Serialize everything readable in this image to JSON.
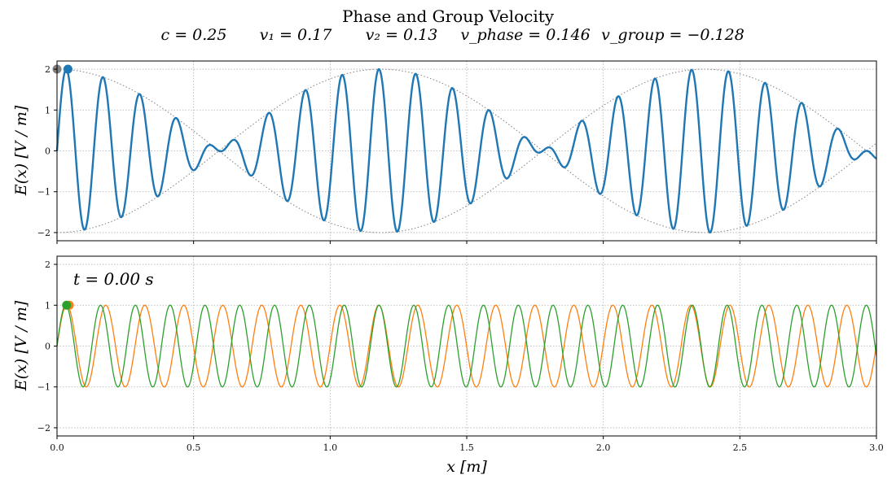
{
  "figure": {
    "title": "Phase and Group Velocity",
    "params": [
      {
        "label": "c = 0.25"
      },
      {
        "label": "v₁ = 0.17"
      },
      {
        "label": "v₂ = 0.13"
      },
      {
        "label": "v_phase = 0.146"
      },
      {
        "label": "v_group = −0.128"
      }
    ]
  },
  "chart_data": [
    {
      "type": "line",
      "panel": "top",
      "ylabel": "E(x)  [V / m]",
      "xlim": [
        0,
        3
      ],
      "ylim": [
        -2.2,
        2.2
      ],
      "yticks": [
        -2,
        -1,
        0,
        1,
        2
      ],
      "ytick_labels": [
        "−2",
        "−1",
        "0",
        "1",
        "2"
      ],
      "xticks": [
        0,
        0.5,
        1,
        1.5,
        2,
        2.5,
        3
      ],
      "grid": true,
      "model": {
        "k1": 44.0,
        "k2": 49.3
      },
      "series": [
        {
          "role": "sum",
          "color": "#1f77b4",
          "formula": "sin(k1 x) + sin(k2 x)"
        },
        {
          "role": "envelope-upper",
          "color": "#808080",
          "style": "dotted",
          "formula": "2 cos((k2-k1) x / 2)"
        },
        {
          "role": "envelope-lower",
          "color": "#808080",
          "style": "dotted",
          "formula": "-2 cos((k2-k1) x / 2)"
        }
      ],
      "markers": [
        {
          "x": 0.0,
          "y": 2.0,
          "color": "#808080"
        },
        {
          "x": 0.04,
          "y": 2.0,
          "color": "#1f77b4"
        }
      ]
    },
    {
      "type": "line",
      "panel": "bottom",
      "annotation": "t = 0.00 s",
      "xlabel": "x [m]",
      "ylabel": "E(x)  [V / m]",
      "xlim": [
        0,
        3
      ],
      "ylim": [
        -2.2,
        2.2
      ],
      "yticks": [
        -2,
        -1,
        0,
        1,
        2
      ],
      "ytick_labels": [
        "−2",
        "−1",
        "0",
        "1",
        "2"
      ],
      "xticks": [
        0,
        0.5,
        1,
        1.5,
        2,
        2.5,
        3
      ],
      "xtick_labels": [
        "0.0",
        "0.5",
        "1.0",
        "1.5",
        "2.0",
        "2.5",
        "3.0"
      ],
      "grid": true,
      "series": [
        {
          "role": "wave-1",
          "color": "#ff7f0e",
          "formula": "sin(k1 x)"
        },
        {
          "role": "wave-2",
          "color": "#2ca02c",
          "formula": "sin(k2 x)"
        }
      ],
      "markers": [
        {
          "x": 0.045,
          "y": 1.0,
          "color": "#ff7f0e"
        },
        {
          "x": 0.035,
          "y": 1.0,
          "color": "#2ca02c"
        }
      ]
    }
  ]
}
